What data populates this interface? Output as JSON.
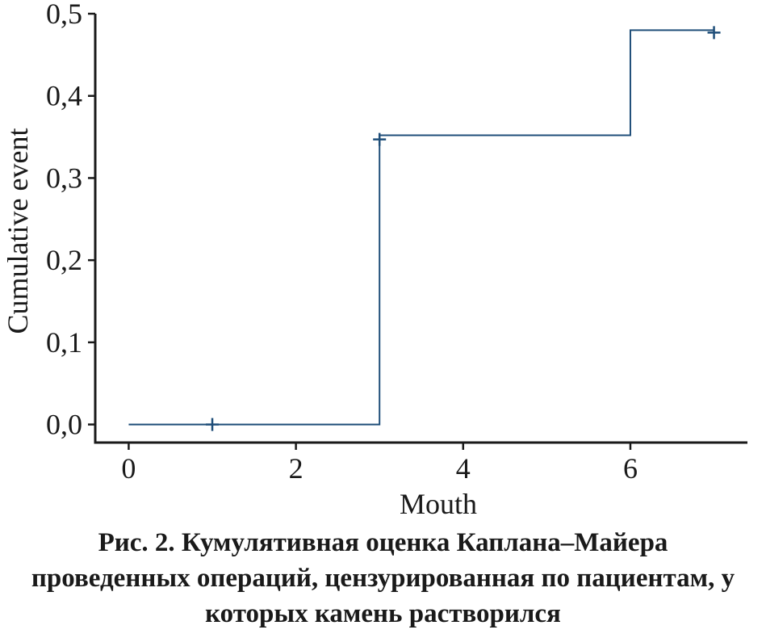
{
  "chart_data": {
    "type": "line",
    "step": true,
    "xlabel": "Mouth",
    "ylabel": "Cumulative event",
    "xlim": [
      -0.4,
      7.4
    ],
    "ylim": [
      -0.022,
      0.5
    ],
    "xticks": [
      0,
      2,
      4,
      6
    ],
    "xtick_labels": [
      "0",
      "2",
      "4",
      "6"
    ],
    "yticks": [
      0.0,
      0.1,
      0.2,
      0.3,
      0.4,
      0.5
    ],
    "ytick_labels": [
      "0,0",
      "0,1",
      "0,2",
      "0,3",
      "0,4",
      "0,5"
    ],
    "grid": false,
    "series": [
      {
        "color": "#1f4e79",
        "steps": [
          {
            "x": 0,
            "y": 0.0
          },
          {
            "x": 3,
            "y": 0.352
          },
          {
            "x": 6,
            "y": 0.48
          },
          {
            "x": 7,
            "y": 0.48
          }
        ],
        "censored": [
          {
            "x": 1,
            "y": 0.0
          },
          {
            "x": 3,
            "y": 0.347
          },
          {
            "x": 7,
            "y": 0.477
          }
        ]
      }
    ]
  },
  "caption": {
    "lines": [
      "Рис. 2. Кумулятивная оценка Каплана–Майера",
      "проведенных операций, цензурированная по пациентам, у",
      "которых камень растворился"
    ]
  }
}
